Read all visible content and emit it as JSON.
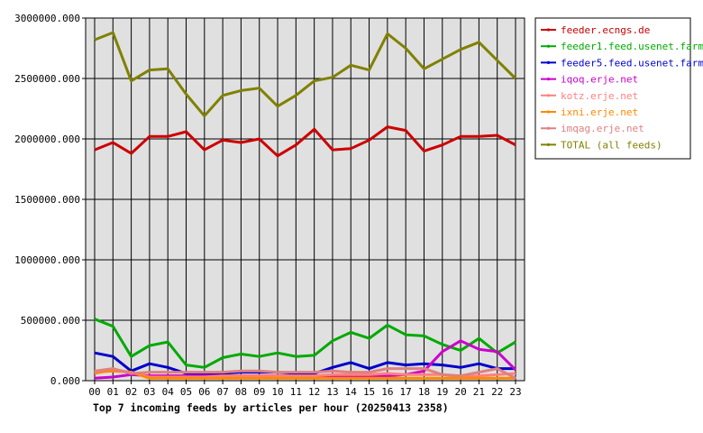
{
  "chart_data": {
    "type": "line",
    "caption": "Top 7 incoming feeds by articles per hour (20250413 2358)",
    "x": [
      "00",
      "01",
      "02",
      "03",
      "04",
      "05",
      "06",
      "07",
      "08",
      "09",
      "10",
      "11",
      "12",
      "13",
      "14",
      "15",
      "16",
      "17",
      "18",
      "19",
      "20",
      "21",
      "22",
      "23"
    ],
    "ylim": [
      0,
      3000000
    ],
    "yticks": [
      0,
      500000,
      1000000,
      1500000,
      2000000,
      2500000,
      3000000
    ],
    "ytick_labels": [
      "0.000",
      "500000.000",
      "1000000.000",
      "1500000.000",
      "2000000.000",
      "2500000.000",
      "3000000.000"
    ],
    "grid": true,
    "legend_position": "right",
    "series": [
      {
        "name": "feeder.ecngs.de",
        "color": "#cc0000",
        "values": [
          1910000,
          1970000,
          1880000,
          2020000,
          2020000,
          2060000,
          1910000,
          1990000,
          1970000,
          2000000,
          1860000,
          1950000,
          2080000,
          1910000,
          1920000,
          1990000,
          2100000,
          2070000,
          1900000,
          1950000,
          2020000,
          2020000,
          2030000,
          1950000
        ]
      },
      {
        "name": "feeder1.feed.usenet.farm",
        "color": "#00aa00",
        "values": [
          510000,
          450000,
          200000,
          290000,
          320000,
          130000,
          110000,
          190000,
          220000,
          200000,
          230000,
          200000,
          210000,
          330000,
          400000,
          350000,
          460000,
          380000,
          370000,
          300000,
          250000,
          350000,
          230000,
          320000
        ]
      },
      {
        "name": "feeder5.feed.usenet.farm",
        "color": "#0000cc",
        "values": [
          230000,
          200000,
          80000,
          140000,
          110000,
          60000,
          50000,
          60000,
          70000,
          70000,
          70000,
          60000,
          60000,
          110000,
          150000,
          100000,
          150000,
          130000,
          140000,
          130000,
          110000,
          140000,
          100000,
          100000
        ]
      },
      {
        "name": "iqoq.erje.net",
        "color": "#cc00cc",
        "values": [
          20000,
          30000,
          50000,
          40000,
          40000,
          40000,
          40000,
          40000,
          40000,
          40000,
          40000,
          40000,
          40000,
          40000,
          40000,
          40000,
          40000,
          50000,
          80000,
          240000,
          330000,
          260000,
          240000,
          90000
        ]
      },
      {
        "name": "kotz.erje.net",
        "color": "#ff8080",
        "values": [
          60000,
          90000,
          70000,
          30000,
          30000,
          30000,
          30000,
          40000,
          40000,
          40000,
          40000,
          40000,
          40000,
          50000,
          50000,
          50000,
          60000,
          50000,
          50000,
          50000,
          30000,
          40000,
          50000,
          60000
        ]
      },
      {
        "name": "ixni.erje.net",
        "color": "#ff8800",
        "values": [
          70000,
          80000,
          70000,
          20000,
          20000,
          20000,
          20000,
          20000,
          20000,
          20000,
          20000,
          20000,
          20000,
          20000,
          20000,
          20000,
          20000,
          20000,
          20000,
          20000,
          20000,
          20000,
          20000,
          20000
        ]
      },
      {
        "name": "imqag.erje.net",
        "color": "#e08080",
        "values": [
          80000,
          100000,
          60000,
          70000,
          70000,
          70000,
          70000,
          70000,
          80000,
          80000,
          70000,
          70000,
          70000,
          80000,
          70000,
          70000,
          100000,
          100000,
          100000,
          50000,
          40000,
          70000,
          100000,
          20000
        ]
      },
      {
        "name": "TOTAL (all feeds)",
        "color": "#808000",
        "values": [
          2820000,
          2880000,
          2480000,
          2570000,
          2580000,
          2370000,
          2190000,
          2360000,
          2400000,
          2420000,
          2270000,
          2360000,
          2480000,
          2510000,
          2610000,
          2570000,
          2870000,
          2750000,
          2580000,
          2660000,
          2740000,
          2800000,
          2650000,
          2500000
        ]
      }
    ]
  }
}
